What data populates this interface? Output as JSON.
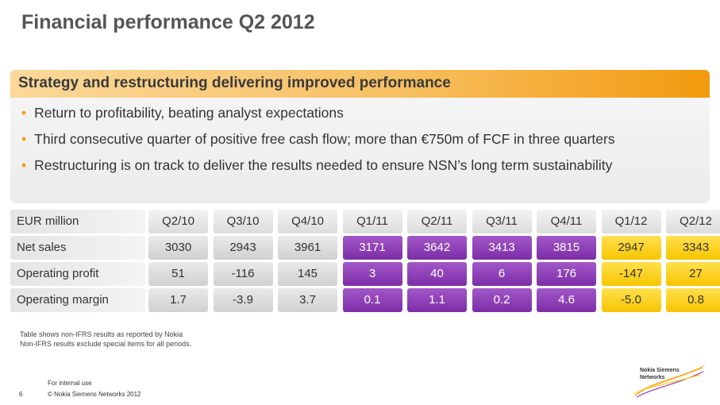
{
  "title": "Financial performance Q2 2012",
  "banner": "Strategy and restructuring delivering improved performance",
  "bullets": [
    "Return to profitability, beating analyst expectations",
    "Third consecutive quarter of positive free cash flow; more than €750m of FCF in three quarters",
    "Restructuring is on track to deliver the results needed to ensure NSN’s long term sustainability"
  ],
  "table": {
    "header_label": "EUR million",
    "quarters": [
      "Q2/10",
      "Q3/10",
      "Q4/10",
      "Q1/11",
      "Q2/11",
      "Q3/11",
      "Q4/11",
      "Q1/12",
      "Q2/12"
    ],
    "rows": [
      {
        "label": "Net sales",
        "values": [
          "3030",
          "2943",
          "3961",
          "3171",
          "3642",
          "3413",
          "3815",
          "2947",
          "3343"
        ]
      },
      {
        "label": "Operating profit",
        "values": [
          "51",
          "-116",
          "145",
          "3",
          "40",
          "6",
          "176",
          "-147",
          "27"
        ]
      },
      {
        "label": "Operating margin",
        "values": [
          "1.7",
          "-3.9",
          "3.7",
          "0.1",
          "1.1",
          "0.2",
          "4.6",
          "-5.0",
          "0.8"
        ]
      }
    ],
    "colors": {
      "grey": "#d9d9d9",
      "purple": "#8e3cb8",
      "yellow": "#fbd21e"
    }
  },
  "notes": [
    "Table shows non-IFRS results as reported by Nokia",
    "Non-IFRS results exclude special items for all periods."
  ],
  "footer": {
    "page": "6",
    "internal": "For internal use",
    "copyright": "© Nokia Siemens Networks 2012"
  },
  "logo": {
    "line1": "Nokia Siemens",
    "line2": "Networks"
  }
}
